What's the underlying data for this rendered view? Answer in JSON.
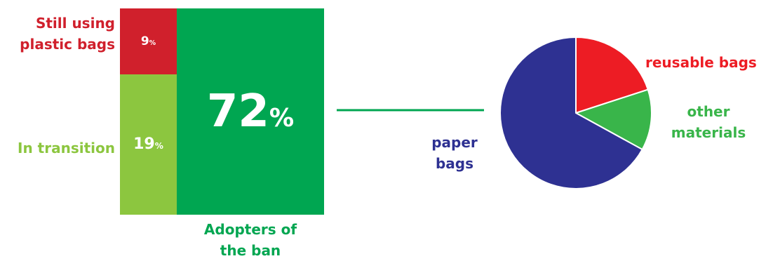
{
  "colors": {
    "still_using": "#d0202c",
    "in_transition": "#8cc63f",
    "adopters": "#00a651",
    "paper": "#2e3192",
    "reusable": "#ed1c24",
    "other": "#39b54a"
  },
  "chart_data": [
    {
      "type": "table",
      "categories": [
        "Still using plastic bags",
        "In transition",
        "Adopters of the ban"
      ],
      "values": [
        9,
        19,
        72
      ],
      "data_labels": [
        "9%",
        "19%",
        "72%"
      ],
      "labels": {
        "still_using": [
          "Still using",
          "plastic bags"
        ],
        "in_transition": "In transition",
        "adopters": [
          "Adopters of",
          "the ban"
        ]
      }
    },
    {
      "type": "pie",
      "categories": [
        "reusable bags",
        "other materials",
        "paper bags"
      ],
      "values": [
        20,
        13,
        67
      ],
      "labels": {
        "reusable": "reusable bags",
        "other": [
          "other",
          "materials"
        ],
        "paper": [
          "paper",
          "bags"
        ]
      }
    }
  ]
}
